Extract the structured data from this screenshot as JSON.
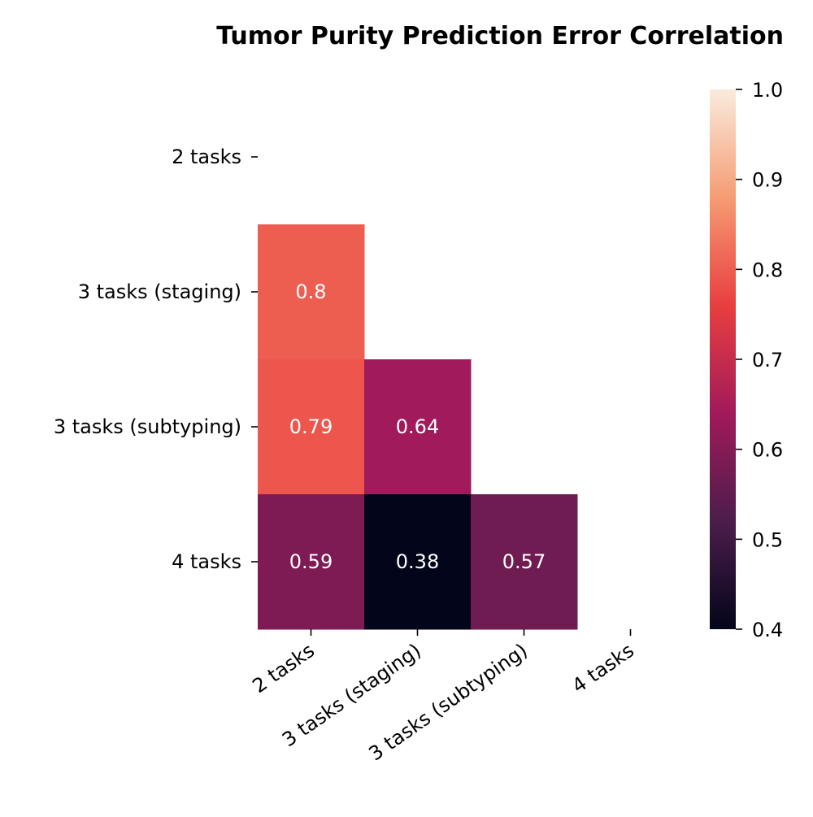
{
  "chart_data": {
    "type": "heatmap",
    "title": "Tumor Purity Prediction Error Correlation",
    "rows": [
      "2 tasks",
      "3 tasks (staging)",
      "3 tasks (subtyping)",
      "4 tasks"
    ],
    "columns": [
      "2 tasks",
      "3 tasks (staging)",
      "3 tasks (subtyping)",
      "4 tasks"
    ],
    "values": [
      [
        null,
        null,
        null,
        null
      ],
      [
        0.8,
        null,
        null,
        null
      ],
      [
        0.79,
        0.64,
        null,
        null
      ],
      [
        0.59,
        0.38,
        0.57,
        null
      ]
    ],
    "mask": "upper triangle including diagonal",
    "colorbar": {
      "range": [
        0.4,
        1.0
      ],
      "ticks": [
        "0.4",
        "0.5",
        "0.6",
        "0.7",
        "0.8",
        "0.9",
        "1.0"
      ],
      "colormap": "rocket",
      "color_stops": [
        "#03051a",
        "#4c1d4b",
        "#a11a5b",
        "#e83f3f",
        "#f69c73",
        "#faebdd"
      ]
    }
  }
}
